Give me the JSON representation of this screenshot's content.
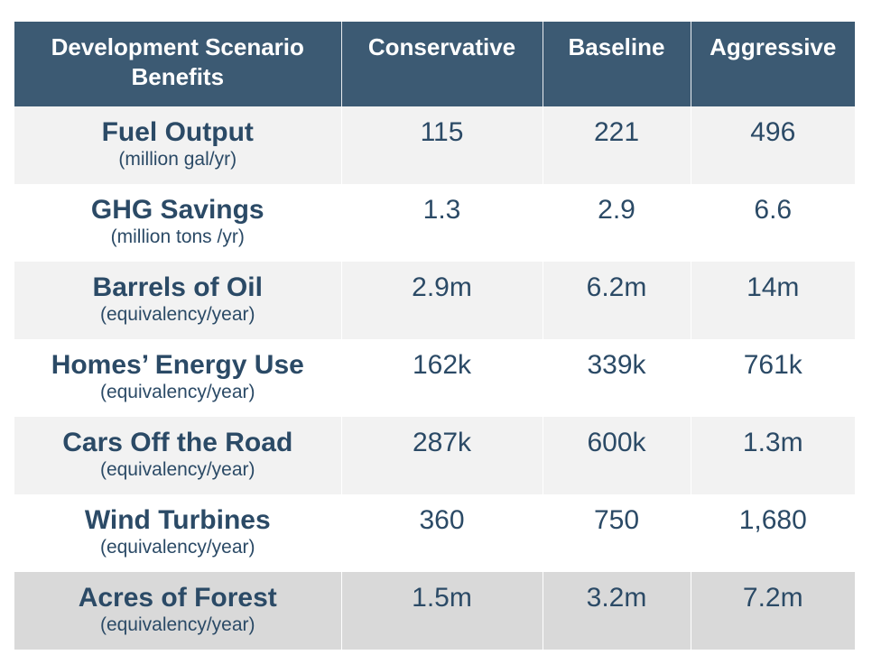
{
  "header": {
    "col0": "Development Scenario Benefits",
    "col1": "Conservative",
    "col2": "Baseline",
    "col3": "Aggressive"
  },
  "rows": [
    {
      "name": "Fuel Output",
      "unit": "(million gal/yr)",
      "conservative": "115",
      "baseline": "221",
      "aggressive": "496"
    },
    {
      "name": "GHG Savings",
      "unit": "(million tons /yr)",
      "conservative": "1.3",
      "baseline": "2.9",
      "aggressive": "6.6"
    },
    {
      "name": "Barrels of Oil",
      "unit": "(equivalency/year)",
      "conservative": "2.9m",
      "baseline": "6.2m",
      "aggressive": "14m"
    },
    {
      "name": "Homes’ Energy Use",
      "unit": "(equivalency/year)",
      "conservative": "162k",
      "baseline": "339k",
      "aggressive": "761k"
    },
    {
      "name": "Cars Off the Road",
      "unit": "(equivalency/year)",
      "conservative": "287k",
      "baseline": "600k",
      "aggressive": "1.3m"
    },
    {
      "name": "Wind Turbines",
      "unit": "(equivalency/year)",
      "conservative": "360",
      "baseline": "750",
      "aggressive": "1,680"
    },
    {
      "name": "Acres of Forest",
      "unit": "(equivalency/year)",
      "conservative": "1.5m",
      "baseline": "3.2m",
      "aggressive": "7.2m"
    }
  ],
  "colors": {
    "header_bg": "#3c5a73",
    "header_text": "#ffffff",
    "body_text": "#2b4a66",
    "row_alt": "#f2f2f2",
    "row_last": "#d9d9d9"
  }
}
